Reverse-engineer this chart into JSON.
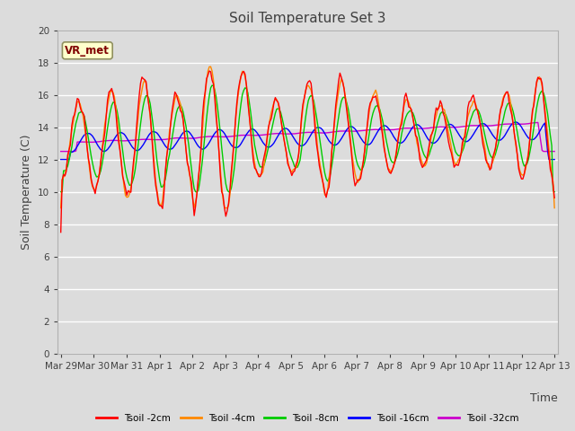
{
  "title": "Soil Temperature Set 3",
  "xlabel": "Time",
  "ylabel": "Soil Temperature (C)",
  "ylim": [
    0,
    20
  ],
  "yticks": [
    0,
    2,
    4,
    6,
    8,
    10,
    12,
    14,
    16,
    18,
    20
  ],
  "xtick_labels": [
    "Mar 29",
    "Mar 30",
    "Mar 31",
    "Apr 1",
    "Apr 2",
    "Apr 3",
    "Apr 4",
    "Apr 5",
    "Apr 6",
    "Apr 7",
    "Apr 8",
    "Apr 9",
    "Apr 10",
    "Apr 11",
    "Apr 12",
    "Apr 13"
  ],
  "legend_labels": [
    "Tsoil -2cm",
    "Tsoil -4cm",
    "Tsoil -8cm",
    "Tsoil -16cm",
    "Tsoil -32cm"
  ],
  "line_colors": [
    "#ff0000",
    "#ff8800",
    "#00cc00",
    "#0000ff",
    "#cc00cc"
  ],
  "annotation_text": "VR_met",
  "bg_color": "#dcdcdc",
  "grid_color": "#ffffff",
  "title_fontsize": 11,
  "tick_fontsize": 7.5,
  "ylabel_fontsize": 9
}
